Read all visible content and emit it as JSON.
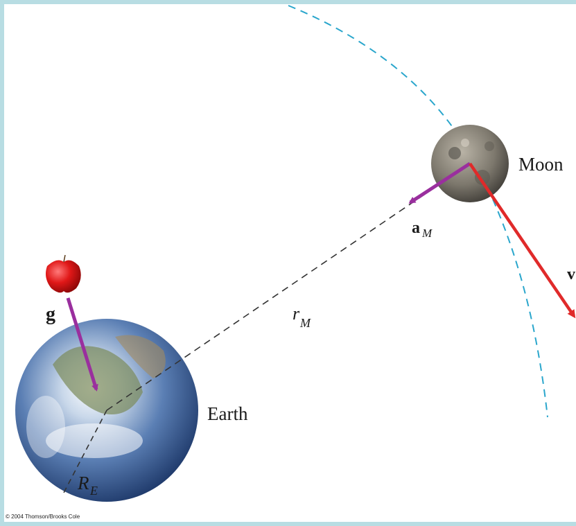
{
  "labels": {
    "moon": "Moon",
    "earth": "Earth",
    "apple_vector": "g",
    "velocity": "v",
    "moon_accel_main": "a",
    "moon_accel_sub": "M",
    "orbit_radius_main": "r",
    "orbit_radius_sub": "M",
    "earth_radius_main": "R",
    "earth_radius_sub": "E"
  },
  "copyright": "© 2004 Thomson/Brooks Cole",
  "colors": {
    "orbit": "#2aa6cc",
    "accel_vector": "#9a2f9e",
    "velocity_vector": "#e02a2a",
    "radius_line": "#333333",
    "border": "#b8dde3"
  },
  "icons": {
    "apple": "apple-icon",
    "earth": "earth-globe",
    "moon": "moon-sphere"
  }
}
